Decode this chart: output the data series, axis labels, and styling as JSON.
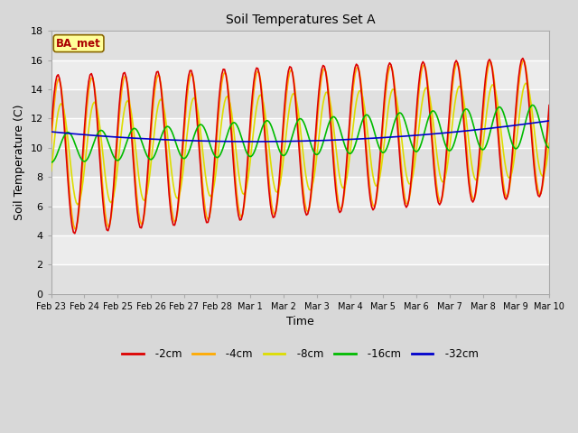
{
  "title": "Soil Temperatures Set A",
  "xlabel": "Time",
  "ylabel": "Soil Temperature (C)",
  "ylim": [
    0,
    18
  ],
  "yticks": [
    0,
    2,
    4,
    6,
    8,
    10,
    12,
    14,
    16,
    18
  ],
  "legend_label": "BA_met",
  "colors": {
    "-2cm": "#dd0000",
    "-4cm": "#ffaa00",
    "-8cm": "#dddd00",
    "-16cm": "#00bb00",
    "-32cm": "#0000cc"
  },
  "series_names": [
    "-2cm",
    "-4cm",
    "-8cm",
    "-16cm",
    "-32cm"
  ],
  "xtick_labels": [
    "Feb 23",
    "Feb 24",
    "Feb 25",
    "Feb 26",
    "Feb 27",
    "Feb 28",
    "Mar 1",
    "Mar 2",
    "Mar 3",
    "Mar 4",
    "Mar 5",
    "Mar 6",
    "Mar 7",
    "Mar 8",
    "Mar 9",
    "Mar 10"
  ],
  "annotation_box_color": "#ffff99",
  "annotation_box_edge": "#886600",
  "fig_facecolor": "#d8d8d8",
  "band_colors": [
    "#e0e0e0",
    "#ececec"
  ],
  "gridline_color": "#ffffff"
}
